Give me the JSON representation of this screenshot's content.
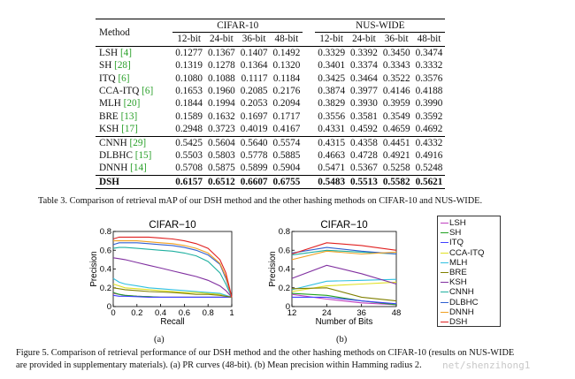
{
  "table": {
    "method_header": "Method",
    "groups": [
      "CIFAR-10",
      "NUS-WIDE"
    ],
    "bits": [
      "12-bit",
      "24-bit",
      "36-bit",
      "48-bit"
    ],
    "sections": [
      [
        {
          "name": "LSH",
          "cite": "[4]",
          "cifar": [
            "0.1277",
            "0.1367",
            "0.1407",
            "0.1492"
          ],
          "nus": [
            "0.3329",
            "0.3392",
            "0.3450",
            "0.3474"
          ]
        },
        {
          "name": "SH",
          "cite": "[28]",
          "cifar": [
            "0.1319",
            "0.1278",
            "0.1364",
            "0.1320"
          ],
          "nus": [
            "0.3401",
            "0.3374",
            "0.3343",
            "0.3332"
          ]
        },
        {
          "name": "ITQ",
          "cite": "[6]",
          "cifar": [
            "0.1080",
            "0.1088",
            "0.1117",
            "0.1184"
          ],
          "nus": [
            "0.3425",
            "0.3464",
            "0.3522",
            "0.3576"
          ]
        },
        {
          "name": "CCA-ITQ",
          "cite": "[6]",
          "cifar": [
            "0.1653",
            "0.1960",
            "0.2085",
            "0.2176"
          ],
          "nus": [
            "0.3874",
            "0.3977",
            "0.4146",
            "0.4188"
          ]
        },
        {
          "name": "MLH",
          "cite": "[20]",
          "cifar": [
            "0.1844",
            "0.1994",
            "0.2053",
            "0.2094"
          ],
          "nus": [
            "0.3829",
            "0.3930",
            "0.3959",
            "0.3990"
          ]
        },
        {
          "name": "BRE",
          "cite": "[13]",
          "cifar": [
            "0.1589",
            "0.1632",
            "0.1697",
            "0.1717"
          ],
          "nus": [
            "0.3556",
            "0.3581",
            "0.3549",
            "0.3592"
          ]
        },
        {
          "name": "KSH",
          "cite": "[17]",
          "cifar": [
            "0.2948",
            "0.3723",
            "0.4019",
            "0.4167"
          ],
          "nus": [
            "0.4331",
            "0.4592",
            "0.4659",
            "0.4692"
          ]
        }
      ],
      [
        {
          "name": "CNNH",
          "cite": "[29]",
          "cifar": [
            "0.5425",
            "0.5604",
            "0.5640",
            "0.5574"
          ],
          "nus": [
            "0.4315",
            "0.4358",
            "0.4451",
            "0.4332"
          ]
        },
        {
          "name": "DLBHC",
          "cite": "[15]",
          "cifar": [
            "0.5503",
            "0.5803",
            "0.5778",
            "0.5885"
          ],
          "nus": [
            "0.4663",
            "0.4728",
            "0.4921",
            "0.4916"
          ]
        },
        {
          "name": "DNNH",
          "cite": "[14]",
          "cifar": [
            "0.5708",
            "0.5875",
            "0.5899",
            "0.5904"
          ],
          "nus": [
            "0.5471",
            "0.5367",
            "0.5258",
            "0.5248"
          ]
        }
      ],
      [
        {
          "name": "DSH",
          "cite": "",
          "cifar": [
            "0.6157",
            "0.6512",
            "0.6607",
            "0.6755"
          ],
          "nus": [
            "0.5483",
            "0.5513",
            "0.5582",
            "0.5621"
          ]
        }
      ]
    ]
  },
  "table_caption": "Table 3. Comparison of retrieval mAP of our DSH method and the other hashing methods on CIFAR-10 and NUS-WIDE.",
  "colors": {
    "LSH": "#c040c0",
    "SH": "#20a020",
    "ITQ": "#4040ff",
    "CCA-ITQ": "#e0e020",
    "MLH": "#30c0e0",
    "BRE": "#808000",
    "KSH": "#8030a0",
    "CNNH": "#20b0a0",
    "DLBHC": "#3060d0",
    "DNNH": "#f0a020",
    "DSH": "#e02020"
  },
  "legend": [
    "LSH",
    "SH",
    "ITQ",
    "CCA-ITQ",
    "MLH",
    "BRE",
    "KSH",
    "CNNH",
    "DLBHC",
    "DNNH",
    "DSH"
  ],
  "chart_data": [
    {
      "type": "line",
      "title": "CIFAR−10",
      "xlabel": "Recall",
      "ylabel": "Precision",
      "xlim": [
        0,
        1
      ],
      "ylim": [
        0,
        0.8
      ],
      "xticks": [
        "0",
        "0.2",
        "0.4",
        "0.6",
        "0.8",
        "1"
      ],
      "yticks": [
        "0",
        "0.2",
        "0.4",
        "0.6",
        "0.8"
      ],
      "x": [
        0,
        0.05,
        0.1,
        0.2,
        0.3,
        0.4,
        0.5,
        0.6,
        0.7,
        0.8,
        0.9,
        0.95,
        1.0
      ],
      "series": [
        {
          "name": "LSH",
          "values": [
            0.14,
            0.13,
            0.12,
            0.11,
            0.105,
            0.1,
            0.1,
            0.1,
            0.1,
            0.1,
            0.1,
            0.1,
            0.1
          ]
        },
        {
          "name": "SH",
          "values": [
            0.15,
            0.13,
            0.12,
            0.11,
            0.105,
            0.1,
            0.1,
            0.1,
            0.1,
            0.1,
            0.1,
            0.1,
            0.1
          ]
        },
        {
          "name": "ITQ",
          "values": [
            0.12,
            0.11,
            0.11,
            0.105,
            0.1,
            0.1,
            0.1,
            0.1,
            0.1,
            0.1,
            0.1,
            0.1,
            0.1
          ]
        },
        {
          "name": "CCA-ITQ",
          "values": [
            0.24,
            0.22,
            0.2,
            0.19,
            0.18,
            0.17,
            0.16,
            0.15,
            0.15,
            0.14,
            0.13,
            0.12,
            0.1
          ]
        },
        {
          "name": "MLH",
          "values": [
            0.3,
            0.26,
            0.24,
            0.22,
            0.2,
            0.19,
            0.18,
            0.17,
            0.16,
            0.15,
            0.14,
            0.12,
            0.1
          ]
        },
        {
          "name": "BRE",
          "values": [
            0.2,
            0.19,
            0.18,
            0.17,
            0.16,
            0.155,
            0.15,
            0.14,
            0.13,
            0.13,
            0.12,
            0.11,
            0.1
          ]
        },
        {
          "name": "KSH",
          "values": [
            0.52,
            0.51,
            0.5,
            0.47,
            0.44,
            0.41,
            0.38,
            0.35,
            0.32,
            0.28,
            0.22,
            0.17,
            0.1
          ]
        },
        {
          "name": "CNNH",
          "values": [
            0.62,
            0.63,
            0.63,
            0.62,
            0.61,
            0.6,
            0.59,
            0.57,
            0.54,
            0.48,
            0.36,
            0.24,
            0.1
          ]
        },
        {
          "name": "DLBHC",
          "values": [
            0.66,
            0.68,
            0.68,
            0.68,
            0.67,
            0.66,
            0.65,
            0.63,
            0.6,
            0.55,
            0.45,
            0.3,
            0.1
          ]
        },
        {
          "name": "DNNH",
          "values": [
            0.7,
            0.7,
            0.7,
            0.7,
            0.69,
            0.68,
            0.67,
            0.65,
            0.62,
            0.57,
            0.46,
            0.32,
            0.1
          ]
        },
        {
          "name": "DSH",
          "values": [
            0.72,
            0.74,
            0.74,
            0.74,
            0.74,
            0.73,
            0.72,
            0.7,
            0.67,
            0.62,
            0.5,
            0.36,
            0.1
          ]
        }
      ]
    },
    {
      "type": "line",
      "title": "CIFAR−10",
      "xlabel": "Number of Bits",
      "ylabel": "Precision",
      "xlim": [
        12,
        48
      ],
      "ylim": [
        0,
        0.8
      ],
      "xticks": [
        "12",
        "24",
        "36",
        "48"
      ],
      "yticks": [
        "0",
        "0.2",
        "0.4",
        "0.6",
        "0.8"
      ],
      "x": [
        12,
        24,
        36,
        48
      ],
      "series": [
        {
          "name": "LSH",
          "values": [
            0.13,
            0.08,
            0.04,
            0.02
          ]
        },
        {
          "name": "SH",
          "values": [
            0.14,
            0.12,
            0.06,
            0.02
          ]
        },
        {
          "name": "ITQ",
          "values": [
            0.1,
            0.1,
            0.06,
            0.03
          ]
        },
        {
          "name": "CCA-ITQ",
          "values": [
            0.16,
            0.22,
            0.24,
            0.26
          ]
        },
        {
          "name": "MLH",
          "values": [
            0.18,
            0.27,
            0.28,
            0.29
          ]
        },
        {
          "name": "BRE",
          "values": [
            0.19,
            0.2,
            0.1,
            0.06
          ]
        },
        {
          "name": "KSH",
          "values": [
            0.3,
            0.44,
            0.35,
            0.24
          ]
        },
        {
          "name": "CNNH",
          "values": [
            0.55,
            0.6,
            0.58,
            0.56
          ]
        },
        {
          "name": "DLBHC",
          "values": [
            0.57,
            0.63,
            0.59,
            0.56
          ]
        },
        {
          "name": "DNNH",
          "values": [
            0.5,
            0.59,
            0.56,
            0.58
          ]
        },
        {
          "name": "DSH",
          "values": [
            0.56,
            0.68,
            0.65,
            0.6
          ]
        }
      ]
    }
  ],
  "subfig_labels": [
    "(a)",
    "(b)"
  ],
  "figure_caption_line1": "Figure 5. Comparison of retrieval performance of our DSH method and the other hashing methods on CIFAR-10 (results on NUS-WIDE",
  "figure_caption_line2": "are provided in supplementary materials). (a) PR curves (48-bit). (b) Mean precision within Hamming radius 2.",
  "watermark": "net/shenzihong1"
}
